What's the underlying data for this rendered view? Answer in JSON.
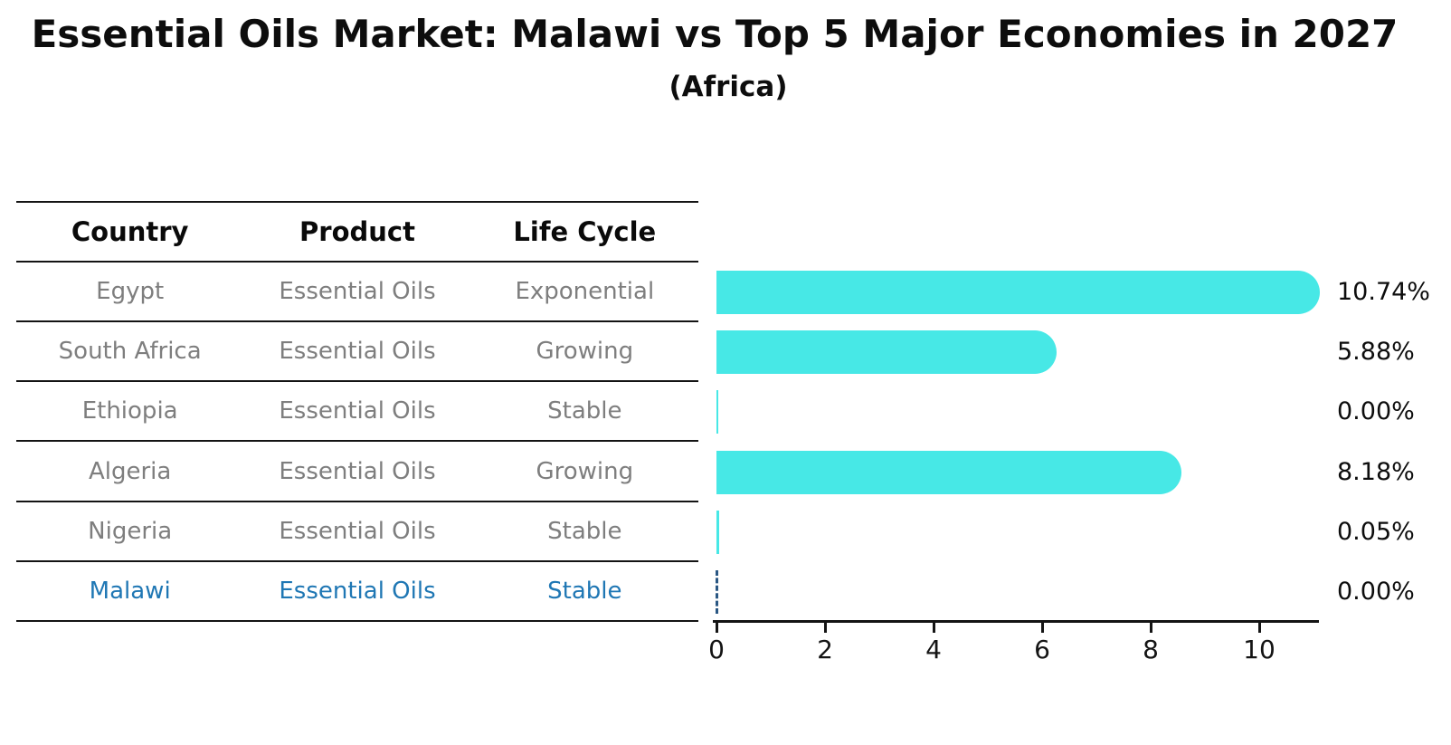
{
  "title": "Essential Oils Market: Malawi vs Top 5 Major Economies in 2027",
  "subtitle": "(Africa)",
  "table": {
    "headers": [
      "Country",
      "Product",
      "Life Cycle"
    ],
    "rows": [
      {
        "country": "Egypt",
        "product": "Essential Oils",
        "life_cycle": "Exponential"
      },
      {
        "country": "South Africa",
        "product": "Essential Oils",
        "life_cycle": "Growing"
      },
      {
        "country": "Ethiopia",
        "product": "Essential Oils",
        "life_cycle": "Stable"
      },
      {
        "country": "Algeria",
        "product": "Essential Oils",
        "life_cycle": "Growing"
      },
      {
        "country": "Nigeria",
        "product": "Essential Oils",
        "life_cycle": "Stable"
      },
      {
        "country": "Malawi",
        "product": "Essential Oils",
        "life_cycle": "Stable"
      }
    ]
  },
  "chart_data": {
    "type": "bar",
    "orientation": "horizontal",
    "title": "Essential Oils Market: Malawi vs Top 5 Major Economies in 2027",
    "subtitle": "(Africa)",
    "categories": [
      "Egypt",
      "South Africa",
      "Ethiopia",
      "Algeria",
      "Nigeria",
      "Malawi"
    ],
    "values": [
      10.74,
      5.88,
      0.0,
      8.18,
      0.05,
      0.0
    ],
    "value_labels": [
      "10.74%",
      "5.88%",
      "0.00%",
      "8.18%",
      "0.05%",
      "0.00%"
    ],
    "x_ticks": [
      0,
      2,
      4,
      6,
      8,
      10
    ],
    "xlim": [
      0,
      11.1
    ],
    "xlabel": "",
    "ylabel": "",
    "grid": false,
    "legend": "none",
    "highlight_category": "Malawi",
    "highlight_style": "dashed-outline-zero-bar",
    "bar_color": "#47E8E6",
    "highlight_color": "#1F77B4"
  },
  "colors": {
    "bar": "#47E8E6",
    "highlight_text": "#1F77B4",
    "highlight_dash": "#2A5783",
    "row_text": "#7E7E7E",
    "header_text": "#0A0A0A",
    "line": "#141414",
    "background": "#FFFFFF"
  }
}
